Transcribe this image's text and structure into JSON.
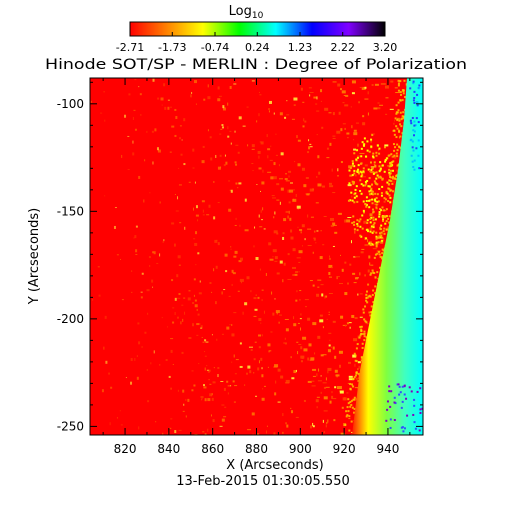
{
  "chart_data": {
    "type": "heatmap",
    "title": "Hinode SOT/SP - MERLIN : Degree of Polarization",
    "timestamp": "13-Feb-2015 01:30:05.550",
    "xlabel": "X (Arcseconds)",
    "ylabel": "Y (Arcseconds)",
    "xlim": [
      804,
      956
    ],
    "ylim": [
      -254,
      -88
    ],
    "x_ticks": [
      820,
      840,
      860,
      880,
      900,
      920,
      940
    ],
    "y_ticks": [
      -100,
      -150,
      -200,
      -250
    ],
    "colorbar": {
      "label_base": "Log",
      "label_sub": "10",
      "range": [
        -2.71,
        3.2
      ],
      "tick_labels": [
        "-2.71",
        "-1.73",
        "-0.74",
        "0.24",
        "1.23",
        "2.22",
        "3.20"
      ],
      "colors": [
        "#ff0000",
        "#ff8000",
        "#ffff00",
        "#00ff00",
        "#00ffff",
        "#0000ff",
        "#8000ff",
        "#000000"
      ]
    },
    "features": {
      "background_value": -2.71,
      "limb_band_colors": [
        "#ff0000",
        "#ffff00",
        "#80ff40",
        "#40ffc0",
        "#00ffff"
      ],
      "off_limb_color": "#ffffff"
    }
  }
}
